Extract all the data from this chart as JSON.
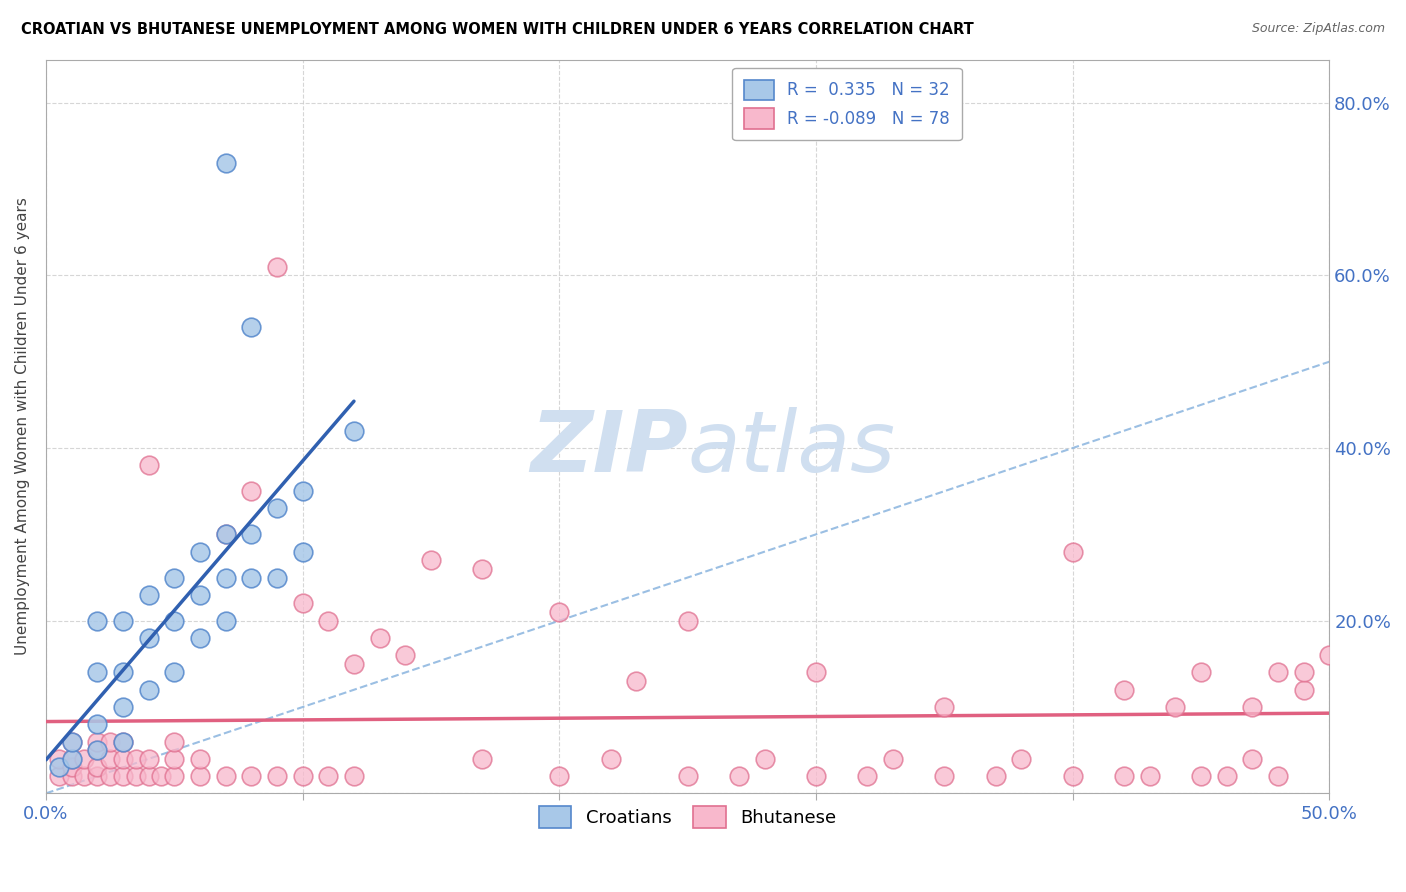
{
  "title": "CROATIAN VS BHUTANESE UNEMPLOYMENT AMONG WOMEN WITH CHILDREN UNDER 6 YEARS CORRELATION CHART",
  "source": "Source: ZipAtlas.com",
  "ylabel": "Unemployment Among Women with Children Under 6 years",
  "xlim": [
    0.0,
    0.5
  ],
  "ylim": [
    0.0,
    0.85
  ],
  "croatian_R": "0.335",
  "croatian_N": "32",
  "bhutanese_R": "-0.089",
  "bhutanese_N": "78",
  "croatian_fill": "#a8c8e8",
  "croatian_edge": "#5588cc",
  "bhutanese_fill": "#f8b8cc",
  "bhutanese_edge": "#e07090",
  "croatian_line_color": "#3060b0",
  "bhutanese_line_color": "#e06080",
  "diagonal_color": "#90b8e0",
  "watermark_color": "#d0dff0",
  "croatian_scatter_x": [
    0.005,
    0.01,
    0.01,
    0.02,
    0.02,
    0.02,
    0.02,
    0.03,
    0.03,
    0.03,
    0.03,
    0.04,
    0.04,
    0.04,
    0.05,
    0.05,
    0.05,
    0.06,
    0.06,
    0.06,
    0.07,
    0.07,
    0.07,
    0.07,
    0.08,
    0.08,
    0.08,
    0.09,
    0.09,
    0.1,
    0.1,
    0.12
  ],
  "croatian_scatter_y": [
    0.03,
    0.04,
    0.06,
    0.05,
    0.08,
    0.14,
    0.2,
    0.06,
    0.1,
    0.14,
    0.2,
    0.12,
    0.18,
    0.23,
    0.14,
    0.2,
    0.25,
    0.18,
    0.23,
    0.28,
    0.2,
    0.25,
    0.3,
    0.73,
    0.25,
    0.3,
    0.54,
    0.25,
    0.33,
    0.28,
    0.35,
    0.42
  ],
  "bhutanese_scatter_x": [
    0.005,
    0.005,
    0.01,
    0.01,
    0.01,
    0.01,
    0.015,
    0.015,
    0.02,
    0.02,
    0.02,
    0.02,
    0.025,
    0.025,
    0.025,
    0.03,
    0.03,
    0.03,
    0.035,
    0.035,
    0.04,
    0.04,
    0.04,
    0.045,
    0.05,
    0.05,
    0.05,
    0.06,
    0.06,
    0.07,
    0.07,
    0.08,
    0.08,
    0.09,
    0.09,
    0.1,
    0.1,
    0.11,
    0.11,
    0.12,
    0.12,
    0.13,
    0.14,
    0.15,
    0.17,
    0.17,
    0.2,
    0.2,
    0.22,
    0.23,
    0.25,
    0.25,
    0.27,
    0.28,
    0.3,
    0.3,
    0.32,
    0.33,
    0.35,
    0.35,
    0.37,
    0.38,
    0.4,
    0.4,
    0.42,
    0.42,
    0.43,
    0.44,
    0.45,
    0.45,
    0.46,
    0.47,
    0.47,
    0.48,
    0.48,
    0.49,
    0.49,
    0.5
  ],
  "bhutanese_scatter_y": [
    0.02,
    0.04,
    0.02,
    0.03,
    0.04,
    0.06,
    0.02,
    0.04,
    0.02,
    0.03,
    0.05,
    0.06,
    0.02,
    0.04,
    0.06,
    0.02,
    0.04,
    0.06,
    0.02,
    0.04,
    0.02,
    0.04,
    0.38,
    0.02,
    0.02,
    0.04,
    0.06,
    0.02,
    0.04,
    0.02,
    0.3,
    0.02,
    0.35,
    0.02,
    0.61,
    0.02,
    0.22,
    0.02,
    0.2,
    0.02,
    0.15,
    0.18,
    0.16,
    0.27,
    0.04,
    0.26,
    0.02,
    0.21,
    0.04,
    0.13,
    0.02,
    0.2,
    0.02,
    0.04,
    0.02,
    0.14,
    0.02,
    0.04,
    0.02,
    0.1,
    0.02,
    0.04,
    0.02,
    0.28,
    0.02,
    0.12,
    0.02,
    0.1,
    0.02,
    0.14,
    0.02,
    0.04,
    0.1,
    0.02,
    0.14,
    0.12,
    0.14,
    0.16
  ]
}
